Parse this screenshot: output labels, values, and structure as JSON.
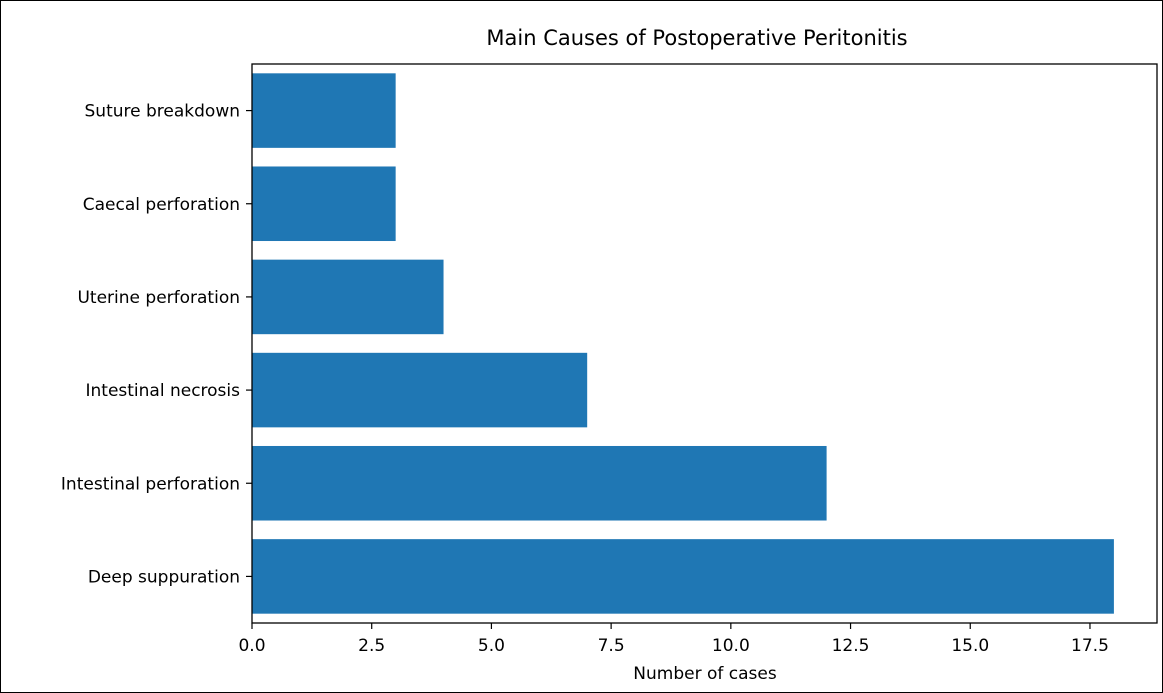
{
  "chart_data": {
    "type": "bar",
    "orientation": "horizontal",
    "title": "Main Causes of Postoperative Peritonitis",
    "xlabel": "Number of cases",
    "ylabel": "",
    "categories": [
      "Deep suppuration",
      "Intestinal perforation",
      "Intestinal necrosis",
      "Uterine perforation",
      "Caecal perforation",
      "Suture breakdown"
    ],
    "values": [
      18,
      12,
      7,
      4,
      3,
      3
    ],
    "xlim": [
      0,
      18.9
    ],
    "xticks": [
      0,
      2.5,
      5,
      7.5,
      10,
      12.5,
      15,
      17.5
    ],
    "xtick_labels": [
      "0.0",
      "2.5",
      "5.0",
      "7.5",
      "10.0",
      "12.5",
      "15.0",
      "17.5"
    ],
    "grid": false,
    "legend": "none",
    "bar_color": "#1f77b4"
  }
}
